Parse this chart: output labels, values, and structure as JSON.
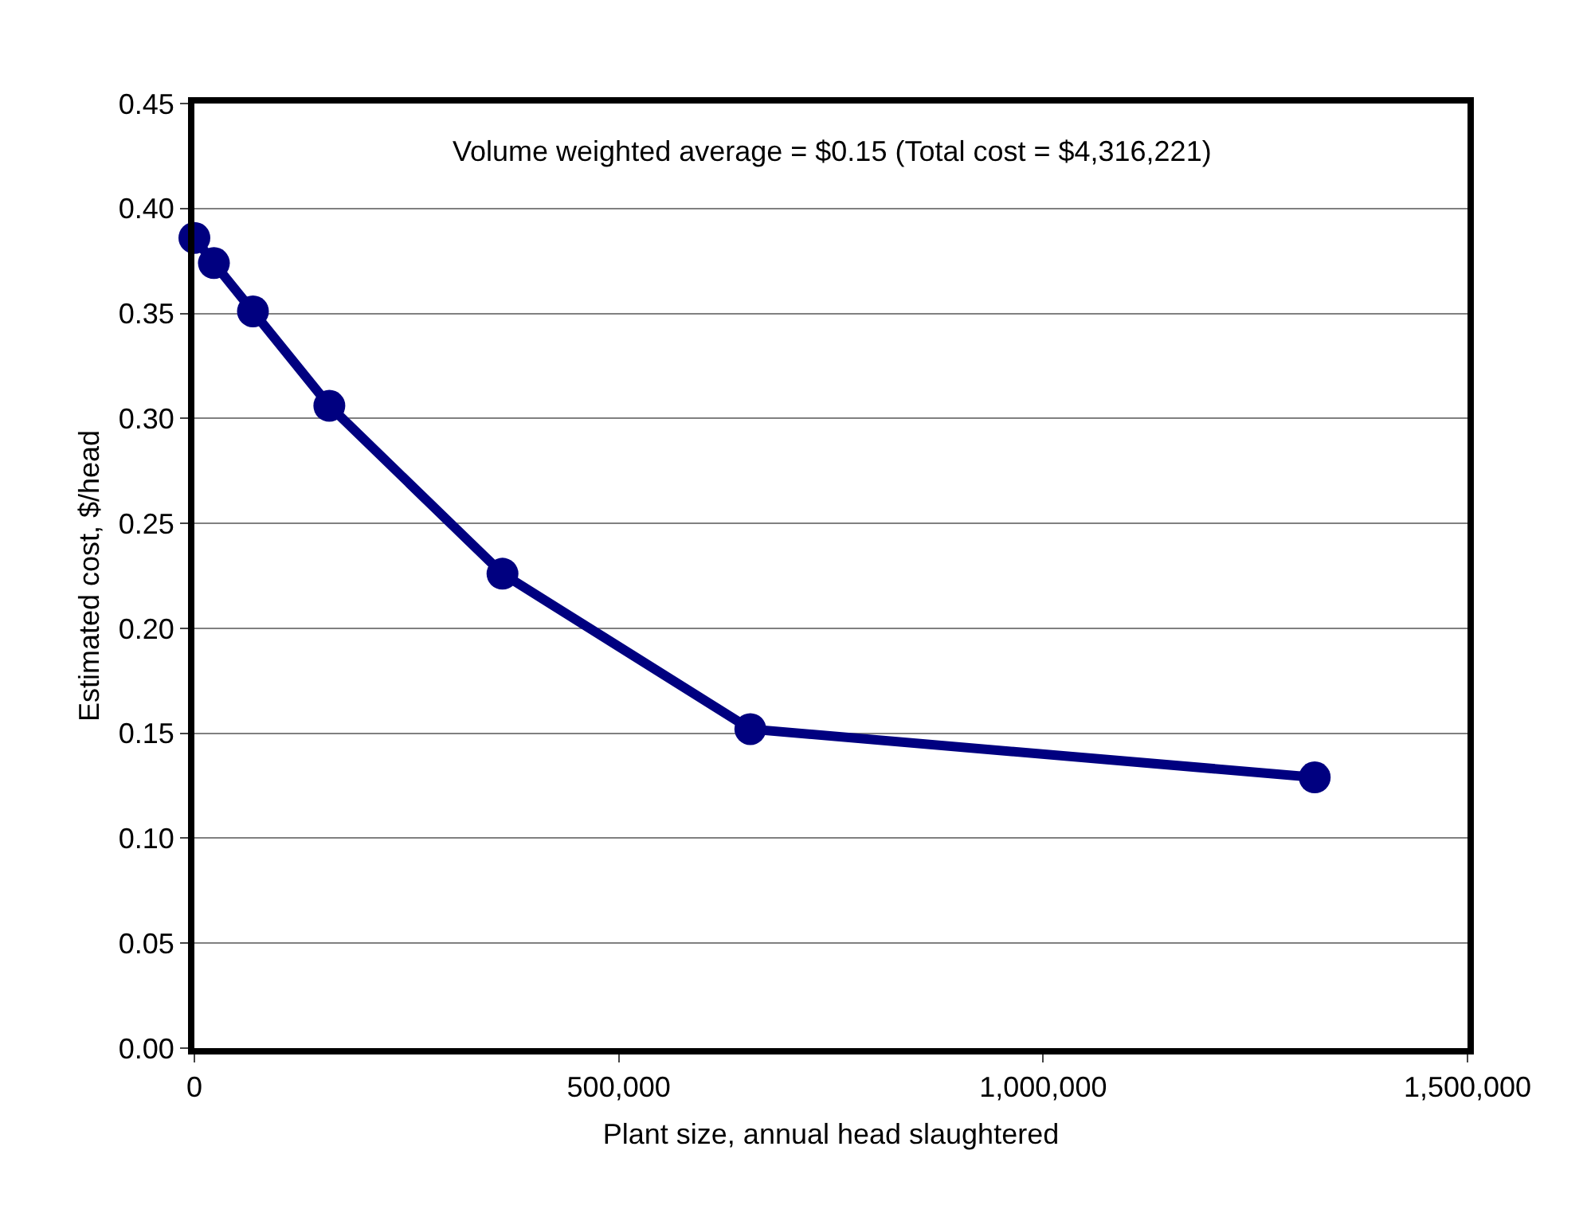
{
  "chart_data": {
    "type": "line",
    "xlabel": "Plant size, annual head slaughtered",
    "ylabel": "Estimated cost, $/head",
    "annotations": [
      "Volume weighted average = $0.15 (Total cost = $4,316,221)"
    ],
    "x": [
      0,
      23000,
      69000,
      159000,
      363000,
      655000,
      1320000
    ],
    "series": [
      {
        "color": "#000080",
        "values": [
          0.386,
          0.374,
          0.351,
          0.306,
          0.226,
          0.152,
          0.129
        ]
      }
    ],
    "xlim": [
      0,
      1500000
    ],
    "xticks": [
      {
        "value": 0,
        "label": "0"
      },
      {
        "value": 500000,
        "label": "500,000"
      },
      {
        "value": 1000000,
        "label": "1,000,000"
      },
      {
        "value": 1500000,
        "label": "1,500,000"
      }
    ],
    "ylim": [
      0,
      0.45
    ],
    "yticks": [
      {
        "value": 0,
        "label": "0.00"
      },
      {
        "value": 0.05,
        "label": "0.05"
      },
      {
        "value": 0.1,
        "label": "0.10"
      },
      {
        "value": 0.15,
        "label": "0.15"
      },
      {
        "value": 0.2,
        "label": "0.20"
      },
      {
        "value": 0.25,
        "label": "0.25"
      },
      {
        "value": 0.3,
        "label": "0.30"
      },
      {
        "value": 0.35,
        "label": "0.35"
      },
      {
        "value": 0.4,
        "label": "0.40"
      },
      {
        "value": 0.45,
        "label": "0.45"
      }
    ],
    "grid": "y",
    "marker": "circle",
    "line_style": "solid"
  }
}
